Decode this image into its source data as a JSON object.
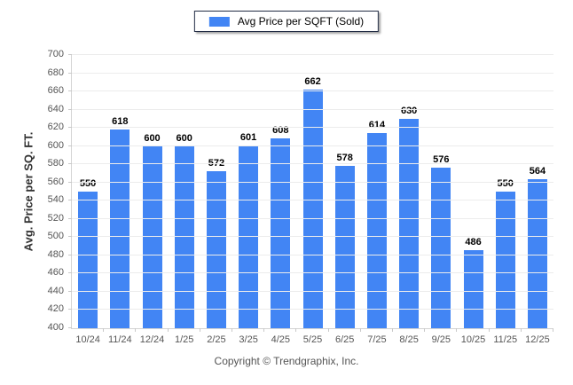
{
  "chart_data": {
    "type": "bar",
    "title": "",
    "legend_label": "Avg Price per SQFT (Sold)",
    "legend_position": "top-center",
    "categories": [
      "10/24",
      "11/24",
      "12/24",
      "1/25",
      "2/25",
      "3/25",
      "4/25",
      "5/25",
      "6/25",
      "7/25",
      "8/25",
      "9/25",
      "10/25",
      "11/25",
      "12/25"
    ],
    "values": [
      550,
      618,
      600,
      600,
      572,
      601,
      608,
      662,
      578,
      614,
      630,
      576,
      486,
      550,
      564
    ],
    "xlabel": "",
    "ylabel": "Avg. Price per SQ. FT.",
    "ylim": [
      400,
      700
    ],
    "y_tick_step": 20,
    "y_ticks": [
      400,
      420,
      440,
      460,
      480,
      500,
      520,
      540,
      560,
      580,
      600,
      620,
      640,
      660,
      700
    ],
    "grid": "horizontal",
    "value_labels_shown": true,
    "bar_color": "#4285f4"
  },
  "legend": {
    "label": "Avg Price per SQFT (Sold)",
    "swatch_color": "#4285f4"
  },
  "footer": {
    "copyright": "Copyright © Trendgraphix, Inc."
  },
  "colors": {
    "bar": "#4285f4",
    "gridline": "#ececec",
    "axis_line": "#d4d4d4",
    "tick_text": "#555555",
    "value_label_text": "#000000",
    "legend_border": "#222c44",
    "background": "#ffffff"
  }
}
